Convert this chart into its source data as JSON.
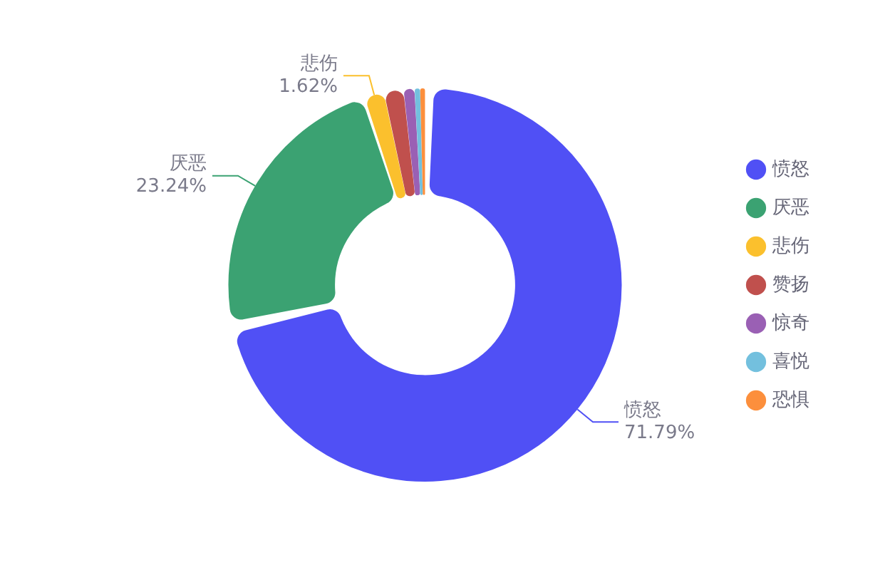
{
  "chart_data": {
    "type": "donut",
    "categories": [
      "愤怒",
      "厌恶",
      "悲伤",
      "赞扬",
      "惊奇",
      "喜悦",
      "恐惧"
    ],
    "values": [
      71.79,
      23.24,
      1.62,
      1.6,
      0.9,
      0.45,
      0.4
    ],
    "colors": [
      "#5050f5",
      "#3ba272",
      "#fbc02d",
      "#c0504d",
      "#9a60b4",
      "#73c0de",
      "#fc8f3c"
    ],
    "value_labels": [
      "71.79%",
      "23.24%",
      "1.62%",
      null,
      null,
      null,
      null
    ],
    "legend": "right"
  }
}
